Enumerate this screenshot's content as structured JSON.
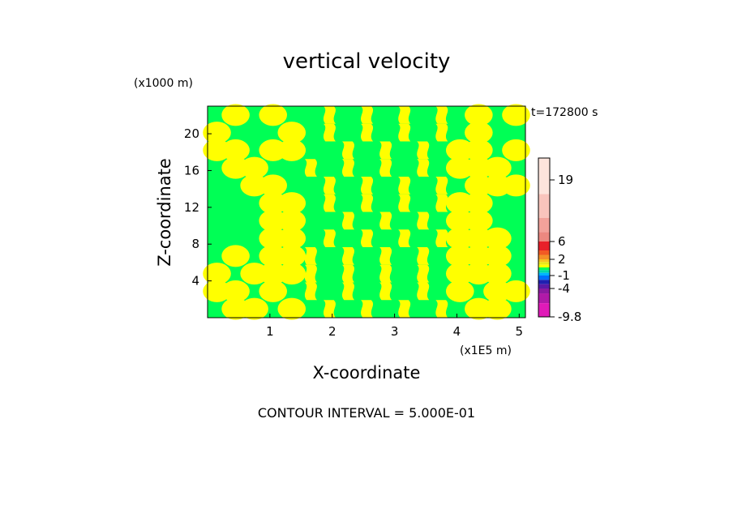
{
  "chart_data": {
    "type": "heatmap",
    "title": "vertical velocity",
    "xlabel": "X-coordinate",
    "ylabel": "Z-coordinate",
    "x_unit": "(x1E5 m)",
    "y_unit": "(x1000 m)",
    "time_label": "t=172800 s",
    "footnote": "CONTOUR INTERVAL = 5.000E-01",
    "xlim": [
      0,
      5.1
    ],
    "ylim": [
      0,
      23
    ],
    "x_ticks": [
      1,
      2,
      3,
      4,
      5
    ],
    "y_ticks": [
      4,
      8,
      12,
      16,
      20
    ],
    "colorbar": {
      "tick_labels": [
        "19",
        "6",
        "2",
        "-1",
        "-4",
        "-9.8"
      ],
      "tick_values": [
        19,
        6,
        2,
        -1,
        -4,
        -9.8
      ],
      "levels": [
        {
          "upper": 25,
          "color": "#fde4dc"
        },
        {
          "upper": 16,
          "color": "#f9c4bc"
        },
        {
          "upper": 11,
          "color": "#f2a29a"
        },
        {
          "upper": 8,
          "color": "#ec8880"
        },
        {
          "upper": 6,
          "color": "#e8202a"
        },
        {
          "upper": 4,
          "color": "#f25a24"
        },
        {
          "upper": 3,
          "color": "#f48f28"
        },
        {
          "upper": 2,
          "color": "#f6c320"
        },
        {
          "upper": 1.5,
          "color": "#e8e81a"
        },
        {
          "upper": 1,
          "color": "#ffff00"
        },
        {
          "upper": 0.5,
          "color": "#00ff55"
        },
        {
          "upper": 0,
          "color": "#00d8a8"
        },
        {
          "upper": -0.5,
          "color": "#00b4ff"
        },
        {
          "upper": -1,
          "color": "#0070ff"
        },
        {
          "upper": -2,
          "color": "#2020b0"
        },
        {
          "upper": -3,
          "color": "#5a1aa8"
        },
        {
          "upper": -4,
          "color": "#8a1aa0"
        },
        {
          "upper": -5,
          "color": "#b01aa8"
        },
        {
          "upper": -7,
          "color": "#e01ab8"
        }
      ],
      "min": -9.8,
      "max": 25
    },
    "field": {
      "description_levels": {
        "positive": "#ffff00",
        "negative": "#00ff55"
      },
      "columns": 17,
      "rows": 12,
      "sign_grid": [
        [
          0,
          1,
          0,
          1,
          0,
          0,
          1,
          0,
          1,
          0,
          1,
          0,
          1,
          0,
          1,
          0,
          1
        ],
        [
          1,
          0,
          0,
          0,
          1,
          0,
          1,
          0,
          1,
          0,
          1,
          0,
          1,
          0,
          1,
          0,
          0
        ],
        [
          1,
          1,
          0,
          1,
          1,
          0,
          0,
          1,
          0,
          1,
          0,
          1,
          0,
          1,
          1,
          0,
          1
        ],
        [
          0,
          1,
          1,
          0,
          0,
          1,
          0,
          1,
          0,
          1,
          0,
          1,
          0,
          1,
          1,
          1,
          0
        ],
        [
          0,
          0,
          1,
          1,
          0,
          0,
          1,
          0,
          1,
          0,
          1,
          0,
          1,
          0,
          1,
          1,
          1
        ],
        [
          0,
          0,
          0,
          1,
          1,
          0,
          1,
          0,
          1,
          0,
          1,
          0,
          1,
          1,
          1,
          0,
          0
        ],
        [
          0,
          0,
          0,
          1,
          1,
          0,
          0,
          1,
          0,
          1,
          0,
          1,
          0,
          1,
          1,
          0,
          0
        ],
        [
          0,
          0,
          0,
          1,
          1,
          0,
          1,
          0,
          1,
          0,
          1,
          0,
          1,
          1,
          1,
          1,
          0
        ],
        [
          0,
          1,
          0,
          1,
          1,
          1,
          0,
          1,
          0,
          1,
          0,
          1,
          0,
          1,
          1,
          1,
          0
        ],
        [
          1,
          0,
          1,
          1,
          1,
          1,
          0,
          1,
          0,
          1,
          0,
          1,
          0,
          1,
          1,
          1,
          0
        ],
        [
          1,
          1,
          0,
          1,
          0,
          1,
          0,
          1,
          0,
          1,
          0,
          1,
          0,
          1,
          0,
          1,
          1
        ],
        [
          0,
          1,
          1,
          0,
          1,
          0,
          1,
          0,
          1,
          0,
          1,
          0,
          1,
          0,
          1,
          1,
          0
        ]
      ]
    }
  }
}
